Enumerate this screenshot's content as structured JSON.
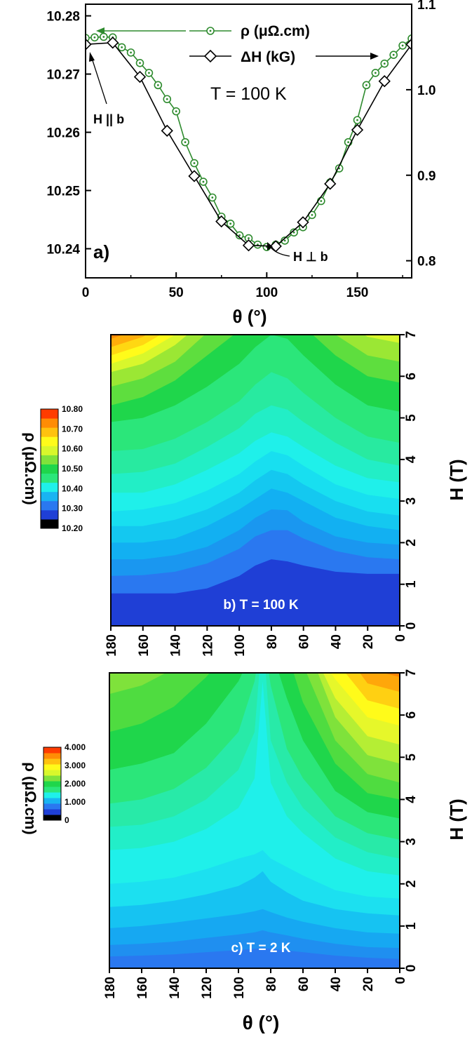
{
  "chart_data": [
    {
      "type": "line",
      "panel": "a)",
      "x": [
        0,
        15,
        30,
        45,
        60,
        75,
        90,
        105,
        120,
        135,
        150,
        165,
        180
      ],
      "xlim": [
        0,
        180
      ],
      "xticks": [
        "0",
        "50",
        "100",
        "150"
      ],
      "xlabel": "θ (°)",
      "ylim_left": [
        10.235,
        10.282
      ],
      "yticks_left": [
        "10.24",
        "10.25",
        "10.26",
        "10.27",
        "10.28"
      ],
      "ylim_right": [
        0.78,
        1.1
      ],
      "yticks_right": [
        "0.8",
        "0.9",
        "1.0",
        "1.1"
      ],
      "series": [
        {
          "name": "ρ (μΩ.cm)",
          "axis": "left",
          "color": "#2e8b2e",
          "marker": "circle-dot",
          "x": [
            0,
            5,
            10,
            15,
            20,
            25,
            30,
            35,
            40,
            45,
            50,
            55,
            60,
            65,
            70,
            75,
            80,
            85,
            90,
            95,
            100,
            105,
            110,
            115,
            120,
            125,
            130,
            135,
            140,
            145,
            150,
            155,
            160,
            165,
            170,
            175,
            180
          ],
          "values": [
            10.2762,
            10.2763,
            10.2764,
            10.2763,
            10.2746,
            10.2737,
            10.2719,
            10.2702,
            10.2681,
            10.2657,
            10.2636,
            10.2583,
            10.2547,
            10.2515,
            10.2488,
            10.2455,
            10.2443,
            10.2423,
            10.2418,
            10.2407,
            10.2403,
            10.2407,
            10.2414,
            10.2428,
            10.2437,
            10.2458,
            10.2482,
            10.2514,
            10.2538,
            10.2583,
            10.2621,
            10.2681,
            10.2702,
            10.2718,
            10.2733,
            10.2749,
            10.2761
          ]
        },
        {
          "name": "ΔH (kG)",
          "axis": "right",
          "color": "#000000",
          "marker": "diamond",
          "x": [
            0,
            15,
            30,
            45,
            60,
            75,
            90,
            105,
            120,
            135,
            150,
            165,
            180
          ],
          "values": [
            1.053,
            1.055,
            1.015,
            0.952,
            0.899,
            0.846,
            0.818,
            0.817,
            0.845,
            0.89,
            0.953,
            1.01,
            1.053
          ]
        }
      ],
      "annotations": [
        "T = 100 K",
        "H || b",
        "H ⊥ b"
      ]
    },
    {
      "type": "heatmap",
      "panel": "b)",
      "title": "b) T = 100 K",
      "xlim": [
        180,
        0
      ],
      "xticks": [
        "180",
        "160",
        "140",
        "120",
        "100",
        "80",
        "60",
        "40",
        "20",
        "0"
      ],
      "ylabel": "H (T)",
      "ylim": [
        0,
        7
      ],
      "yticks": [
        "0",
        "1",
        "2",
        "3",
        "4",
        "5",
        "6",
        "7"
      ],
      "colorbar_label": "ρ (μΩ.cm)",
      "colorbar_ticks": [
        "10.20",
        "10.30",
        "10.40",
        "10.50",
        "10.60",
        "10.70",
        "10.80"
      ],
      "colorbar_range": [
        10.2,
        10.8
      ],
      "values": [
        10.49,
        10.51,
        10.53
      ]
    },
    {
      "type": "heatmap",
      "panel": "c)",
      "title": "c)  T = 2 K",
      "xlim": [
        180,
        0
      ],
      "xticks": [
        "180",
        "160",
        "140",
        "120",
        "100",
        "80",
        "60",
        "40",
        "20",
        "0"
      ],
      "xlabel": "θ (°)",
      "ylabel": "H (T)",
      "ylim": [
        0,
        7
      ],
      "yticks": [
        "0",
        "1",
        "2",
        "3",
        "4",
        "5",
        "6",
        "7"
      ],
      "colorbar_label": "ρ (μΩ.cm)",
      "colorbar_ticks": [
        "0",
        "1.000",
        "2.000",
        "3.000",
        "4.000"
      ],
      "colorbar_range": [
        0,
        4
      ]
    }
  ],
  "colors": {
    "rho_series": "#2e8b2e",
    "delta_h_series": "#000000",
    "colormap": [
      "#000000",
      "#1f3fd6",
      "#2a78f0",
      "#19b4f2",
      "#1ff0ea",
      "#2be67a",
      "#1fd64b",
      "#7fe23b",
      "#d8f72c",
      "#fffb1a",
      "#ffc20f",
      "#ff8c05",
      "#ff3c00"
    ]
  }
}
